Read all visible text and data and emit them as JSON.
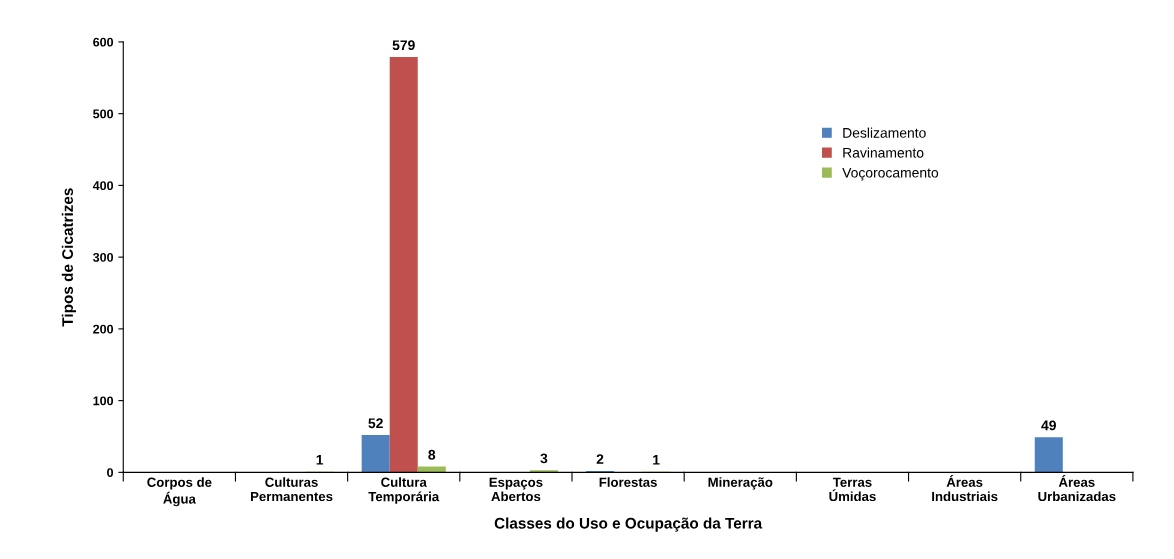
{
  "chart_data": {
    "type": "bar",
    "xlabel": "Classes do Uso e Ocupação da Terra",
    "ylabel": "Tipos de Cicatrizes",
    "categories": [
      "Corpos de\nÁgua",
      "Culturas\nPermanentes",
      "Cultura\nTemporária",
      "Espaços\nAbertos",
      "Florestas",
      "Mineração",
      "Terras\nÚmidas",
      "Áreas\nIndustriais",
      "Áreas\nUrbanizadas"
    ],
    "series": [
      {
        "name": "Deslizamento",
        "color": "#4f81bd",
        "values": [
          0,
          0,
          52,
          0,
          2,
          0,
          0,
          0,
          49
        ],
        "value_labels": [
          null,
          null,
          "52",
          null,
          "2",
          null,
          null,
          null,
          "49"
        ]
      },
      {
        "name": "Ravinamento",
        "color": "#c0504d",
        "values": [
          0,
          0,
          579,
          0,
          0,
          0,
          0,
          0,
          0
        ],
        "value_labels": [
          null,
          null,
          "579",
          null,
          null,
          null,
          null,
          null,
          null
        ]
      },
      {
        "name": "Voçorocamento",
        "color": "#9bbb59",
        "values": [
          0,
          1,
          8,
          3,
          1,
          0,
          0,
          0,
          0
        ],
        "value_labels": [
          null,
          "1",
          "8",
          "3",
          "1",
          null,
          null,
          null,
          null
        ]
      }
    ],
    "ylim": [
      0,
      600
    ],
    "yticks": [
      0,
      100,
      200,
      300,
      400,
      500,
      600
    ],
    "grid": false,
    "legend": "top right"
  }
}
